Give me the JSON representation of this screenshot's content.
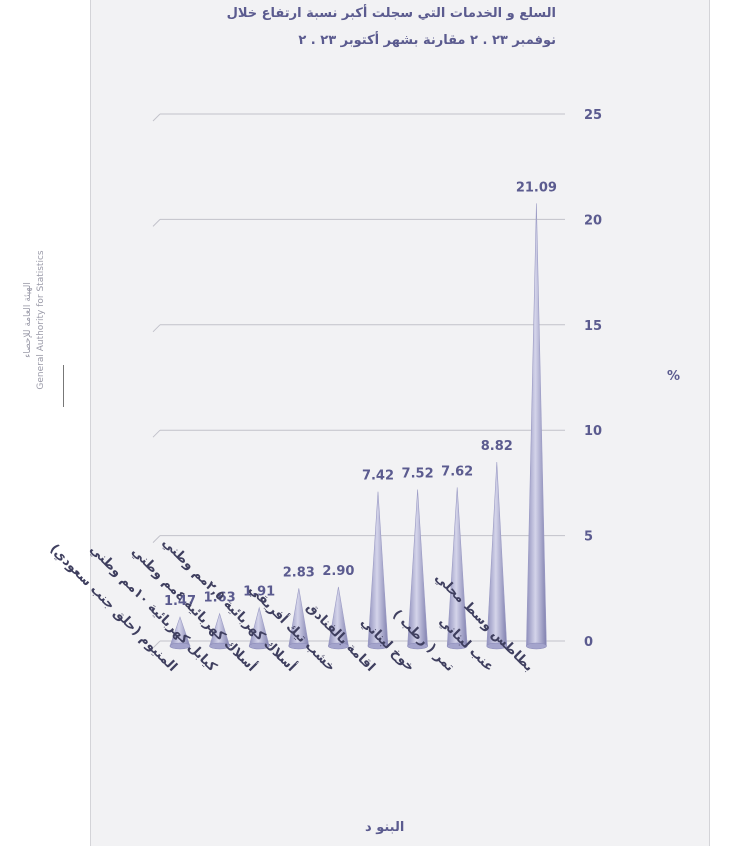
{
  "brand": {
    "name_ar": "الهيئة العامة للإحصاء",
    "name_en": "General Authority for Statistics"
  },
  "chart_data": {
    "type": "bar",
    "title_line1": "السلع و الخدمات التي سجلت أكبر نسبة ارتفاع خلال",
    "title_line2": "نوفمبر ٢٣ . ٢ مقارنة بشهر أكتوبر ٢٣ . ٢",
    "xlabel": "البنو د",
    "ylabel": "%",
    "ylim": [
      0,
      25
    ],
    "y_ticks": [
      0,
      5,
      10,
      15,
      20,
      25
    ],
    "grid": true,
    "bar_shape": "cone",
    "color": "#b8b8d6",
    "categories": [
      "المنيوم (حلق جنب سعودي)",
      "كيابل كهربائية ١٠مم وطني",
      "أسلاك كهربائية ٤مم وطني",
      "أسلاك كهربائية ٢,٥مم وطني",
      "خشب تيك أفريقي",
      "اقامة بالفنادق",
      "خوخ لبناني",
      "تمر ( رطب )",
      "عنب لبناني",
      "بطاطس وسط محلي"
    ],
    "values": [
      1.47,
      1.63,
      1.91,
      2.83,
      2.9,
      7.42,
      7.52,
      7.62,
      8.82,
      21.09
    ],
    "value_labels": [
      "1.47",
      "1.63",
      "1.91",
      "2.83",
      "2.90",
      "7.42",
      "7.52",
      "7.62",
      "8.82",
      "21.09"
    ]
  }
}
